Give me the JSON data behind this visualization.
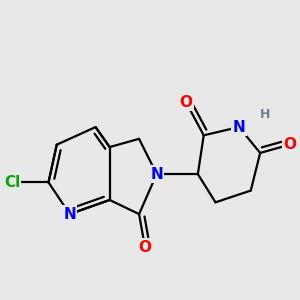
{
  "background_color": "#e8e8e8",
  "atom_colors": {
    "C": "#000000",
    "N": "#0000ff",
    "O": "#ff0000",
    "Cl": "#00aa00",
    "H": "#708090"
  },
  "bond_color": "#000000",
  "bond_width": 1.6,
  "font_size_atoms": 11,
  "font_size_H": 9
}
